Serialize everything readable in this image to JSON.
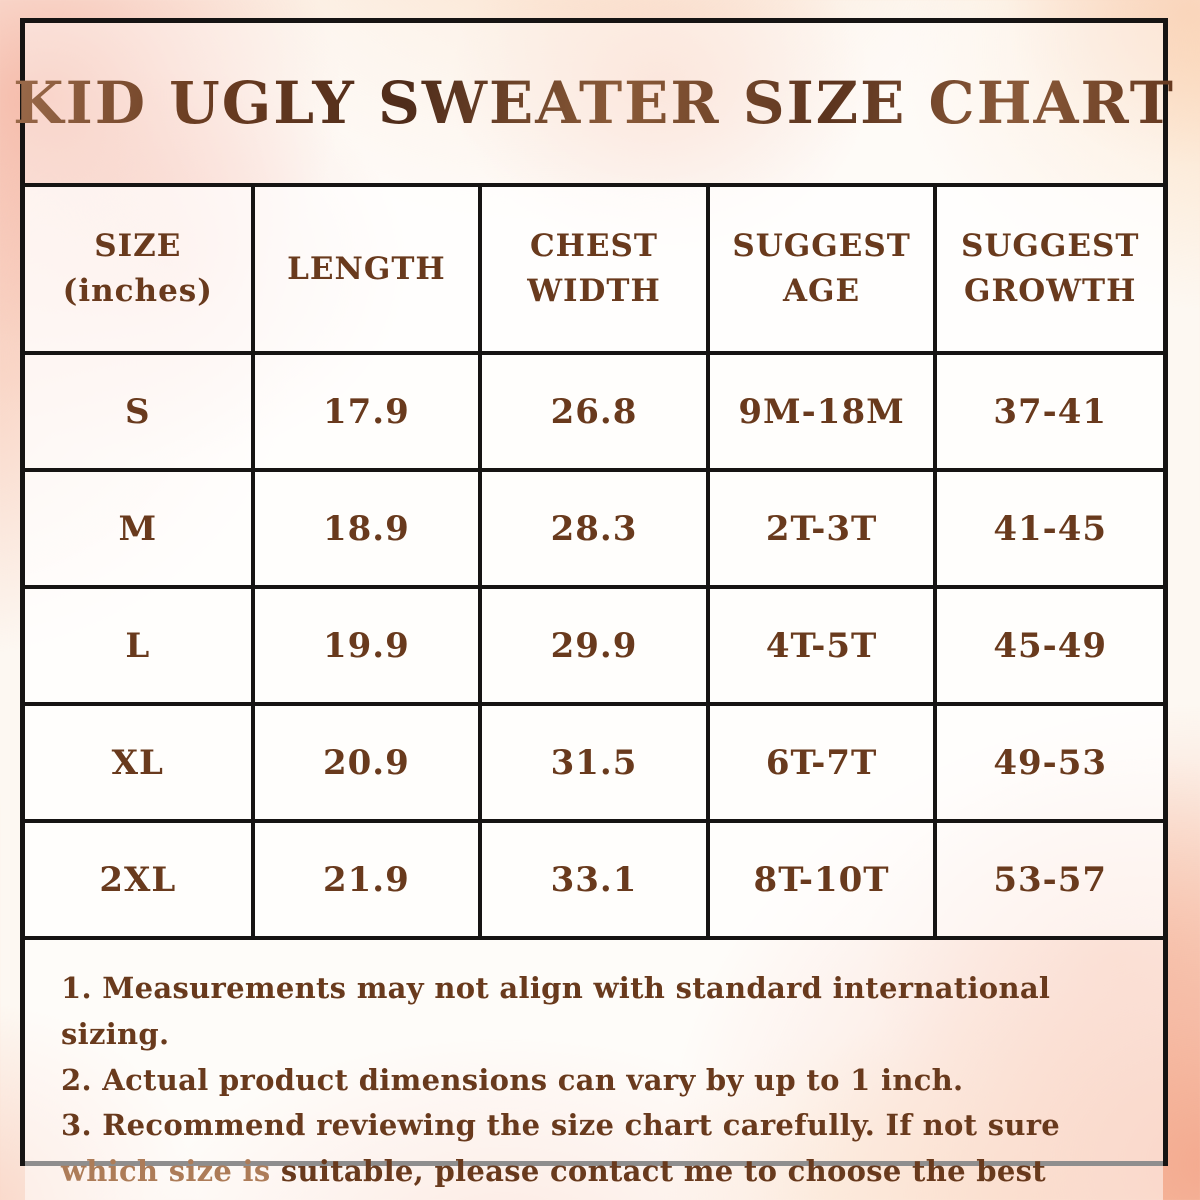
{
  "title": "KID UGLY SWEATER SIZE CHART",
  "colors": {
    "text_brown": "#693a1d",
    "text_brown_light": "#ad7c58",
    "border_black": "#161413",
    "watercolor_pink": "#f3a996",
    "watercolor_peach": "#facd96",
    "watercolor_cream": "#fbe4be"
  },
  "table": {
    "headers": [
      "SIZE\n(inches)",
      "LENGTH",
      "CHEST\nWIDTH",
      "SUGGEST\nAGE",
      "SUGGEST\nGROWTH"
    ],
    "rows": [
      [
        "S",
        "17.9",
        "26.8",
        "9M-18M",
        "37-41"
      ],
      [
        "M",
        "18.9",
        "28.3",
        "2T-3T",
        "41-45"
      ],
      [
        "L",
        "19.9",
        "29.9",
        "4T-5T",
        "45-49"
      ],
      [
        "XL",
        "20.9",
        "31.5",
        "6T-7T",
        "49-53"
      ],
      [
        "2XL",
        "21.9",
        "33.1",
        "8T-10T",
        "53-57"
      ]
    ]
  },
  "notes": [
    {
      "segments": [
        {
          "text": "1. Measurements may not align with standard international sizing.",
          "tone": "dark"
        }
      ]
    },
    {
      "segments": [
        {
          "text": "2. Actual product dimensions can vary by up to 1 inch.",
          "tone": "dark"
        }
      ]
    },
    {
      "segments": [
        {
          "text": "3. Recommend reviewing the size chart carefully. If not sure ",
          "tone": "dark"
        },
        {
          "text": "which size is",
          "tone": "light"
        },
        {
          "text": " suitable, please contact me to choose the best size.",
          "tone": "dark"
        }
      ]
    }
  ]
}
